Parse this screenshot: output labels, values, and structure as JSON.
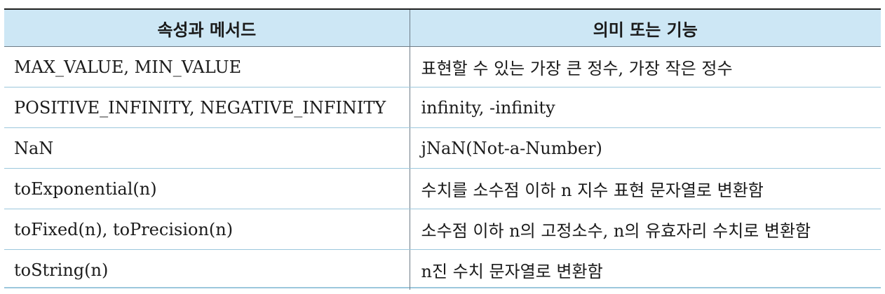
{
  "table": {
    "headers": [
      "속성과 메서드",
      "의미 또는 기능"
    ],
    "rows": [
      [
        "MAX_VALUE, MIN_VALUE",
        "표현할 수 있는 가장 큰 정수, 가장 작은 정수"
      ],
      [
        "POSITIVE_INFINITY, NEGATIVE_INFINITY",
        "infinity, -infinity"
      ],
      [
        "NaN",
        "jNaN(Not-a-Number)"
      ],
      [
        "toExponential(n)",
        "수치를 소수점 이하 n 지수 표현 문자열로 변환함"
      ],
      [
        "toFixed(n), toPrecision(n)",
        "소수점 이하 n의 고정소수, n의 유효자리 수치로 변환함"
      ],
      [
        "toString(n)",
        "n진 수치 문자열로 변환함"
      ]
    ]
  },
  "colors": {
    "header_bg": "#cde7f5",
    "row_border": "#9cc7dc",
    "column_border": "#6d7b86",
    "top_rule": "#1f1f1f"
  }
}
